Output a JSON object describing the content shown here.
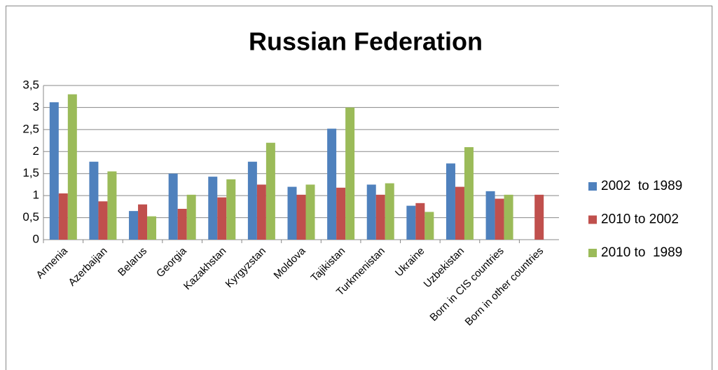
{
  "chart_data": {
    "type": "bar",
    "title": "Russian Federation",
    "categories": [
      "Armenia",
      "Azerbaijan",
      "Belarus",
      "Georgia",
      "Kazakhstan",
      "Kyrgyzstan",
      "Moldova",
      "Tajikistan",
      "Turkmenistan",
      "Ukraine",
      "Uzbekistan",
      "Born in CIS countries",
      "Born in other countries"
    ],
    "series": [
      {
        "name": "2002  to 1989",
        "color": "#4f81bd",
        "values": [
          3.12,
          1.77,
          0.65,
          1.5,
          1.43,
          1.77,
          1.2,
          2.52,
          1.25,
          0.77,
          1.73,
          1.1,
          null
        ]
      },
      {
        "name": "2010 to 2002",
        "color": "#c0504d",
        "values": [
          1.05,
          0.87,
          0.8,
          0.7,
          0.96,
          1.25,
          1.02,
          1.18,
          1.02,
          0.83,
          1.2,
          0.93,
          1.02
        ]
      },
      {
        "name": "2010 to  1989",
        "color": "#9bbb59",
        "values": [
          3.3,
          1.55,
          0.53,
          1.02,
          1.37,
          2.2,
          1.25,
          3.0,
          1.28,
          0.63,
          2.1,
          1.02,
          null
        ]
      }
    ],
    "ylim": [
      0,
      3.5
    ],
    "yticks": [
      0,
      {
        "value": 0.5,
        "label": "0,5"
      },
      1,
      {
        "value": 1.5,
        "label": "1,5"
      },
      2,
      {
        "value": 2.5,
        "label": "2,5"
      },
      3,
      {
        "value": 3.5,
        "label": "3,5"
      }
    ],
    "grid": true,
    "legend": "right"
  }
}
